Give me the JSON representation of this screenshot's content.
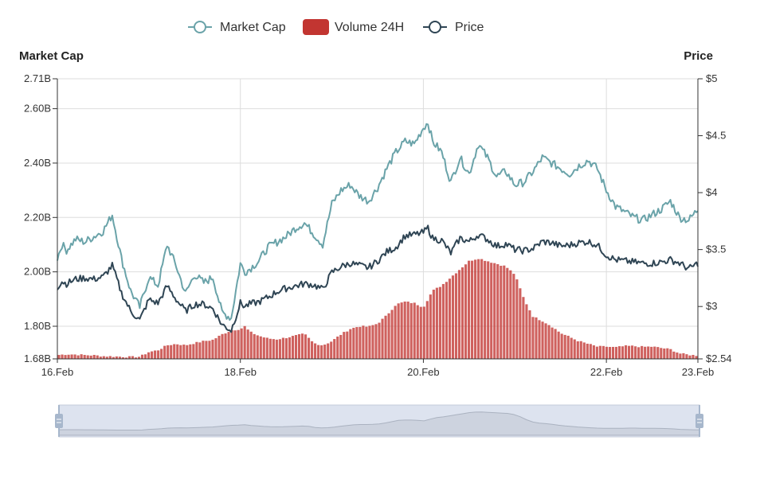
{
  "legend": {
    "market_cap": "Market Cap",
    "volume": "Volume 24H",
    "price": "Price"
  },
  "colors": {
    "market_cap": "#6aa3a9",
    "volume": "#c23531",
    "price": "#2f4554",
    "grid": "#dddddd",
    "axis": "#333333",
    "zoom_fill": "#dde3ef",
    "zoom_border": "#c4cbd8",
    "zoom_handle": "#a7b7cc"
  },
  "chart_data": {
    "type": "line",
    "x_axis": {
      "type": "time",
      "range": [
        "2024-02-16",
        "2024-02-23"
      ],
      "tick_labels": [
        "16.Feb",
        "18.Feb",
        "20.Feb",
        "22.Feb",
        "23.Feb"
      ],
      "tick_days": [
        0,
        2,
        4,
        6,
        7
      ]
    },
    "y_left": {
      "name": "Market Cap",
      "range": [
        1.68,
        2.71
      ],
      "tick_values": [
        1.68,
        1.8,
        2.0,
        2.2,
        2.4,
        2.6,
        2.71
      ],
      "tick_labels": [
        "1.68B",
        "1.80B",
        "2.00B",
        "2.20B",
        "2.40B",
        "2.60B",
        "2.71B"
      ]
    },
    "y_right": {
      "name": "Price",
      "range": [
        2.54,
        5
      ],
      "tick_values": [
        2.54,
        3,
        3.5,
        4,
        4.5,
        5
      ],
      "tick_labels": [
        "$2.54",
        "$3",
        "$3.5",
        "$4",
        "$4.5",
        "$5"
      ]
    },
    "grid": true,
    "legend_position": "top-center",
    "data_zoom": {
      "start": 0,
      "end": 100
    },
    "series": [
      {
        "name": "Market Cap",
        "type": "line",
        "axis": "left",
        "unit": "B",
        "x_days": [
          0,
          0.05,
          0.1,
          0.2,
          0.3,
          0.4,
          0.5,
          0.6,
          0.7,
          0.8,
          0.9,
          1.0,
          1.1,
          1.2,
          1.3,
          1.4,
          1.5,
          1.6,
          1.7,
          1.8,
          1.9,
          2.0,
          2.05,
          2.1,
          2.2,
          2.3,
          2.4,
          2.5,
          2.6,
          2.7,
          2.8,
          2.9,
          3.0,
          3.1,
          3.2,
          3.3,
          3.4,
          3.5,
          3.6,
          3.7,
          3.8,
          3.9,
          4.0,
          4.05,
          4.1,
          4.2,
          4.3,
          4.4,
          4.5,
          4.6,
          4.7,
          4.8,
          4.9,
          5.0,
          5.1,
          5.2,
          5.3,
          5.4,
          5.5,
          5.6,
          5.7,
          5.8,
          5.9,
          6.0,
          6.1,
          6.2,
          6.3,
          6.4,
          6.5,
          6.6,
          6.7,
          6.8,
          6.9,
          7.0
        ],
        "values": [
          2.05,
          2.1,
          2.08,
          2.12,
          2.11,
          2.13,
          2.15,
          2.21,
          2.05,
          1.93,
          1.87,
          1.98,
          1.95,
          2.1,
          2.02,
          1.92,
          1.99,
          1.96,
          1.98,
          1.85,
          1.83,
          2.03,
          2.0,
          2.01,
          2.04,
          2.09,
          2.11,
          2.13,
          2.16,
          2.18,
          2.14,
          2.1,
          2.25,
          2.3,
          2.32,
          2.28,
          2.26,
          2.31,
          2.38,
          2.44,
          2.48,
          2.47,
          2.53,
          2.55,
          2.48,
          2.44,
          2.33,
          2.42,
          2.36,
          2.47,
          2.42,
          2.35,
          2.37,
          2.32,
          2.33,
          2.37,
          2.42,
          2.4,
          2.38,
          2.36,
          2.39,
          2.41,
          2.38,
          2.3,
          2.24,
          2.22,
          2.2,
          2.19,
          2.21,
          2.23,
          2.26,
          2.2,
          2.19,
          2.23
        ]
      },
      {
        "name": "Price",
        "type": "line",
        "axis": "right",
        "unit": "$",
        "x_days": [
          0,
          0.05,
          0.1,
          0.2,
          0.3,
          0.4,
          0.5,
          0.6,
          0.7,
          0.8,
          0.9,
          1.0,
          1.1,
          1.2,
          1.3,
          1.4,
          1.5,
          1.6,
          1.7,
          1.8,
          1.9,
          2.0,
          2.05,
          2.1,
          2.2,
          2.3,
          2.4,
          2.5,
          2.6,
          2.7,
          2.8,
          2.9,
          3.0,
          3.1,
          3.2,
          3.3,
          3.4,
          3.5,
          3.6,
          3.7,
          3.8,
          3.9,
          4.0,
          4.05,
          4.1,
          4.2,
          4.3,
          4.4,
          4.5,
          4.6,
          4.7,
          4.8,
          4.9,
          5.0,
          5.1,
          5.2,
          5.3,
          5.4,
          5.5,
          5.6,
          5.7,
          5.8,
          5.9,
          6.0,
          6.1,
          6.2,
          6.3,
          6.4,
          6.5,
          6.6,
          6.7,
          6.8,
          6.9,
          7.0
        ],
        "values": [
          3.17,
          3.22,
          3.2,
          3.24,
          3.25,
          3.24,
          3.26,
          3.36,
          3.12,
          2.96,
          2.88,
          3.06,
          3.03,
          3.18,
          3.06,
          2.96,
          3.02,
          3.02,
          2.98,
          2.84,
          2.79,
          3.03,
          3.0,
          3.02,
          3.04,
          3.08,
          3.13,
          3.16,
          3.18,
          3.2,
          3.19,
          3.15,
          3.3,
          3.35,
          3.38,
          3.36,
          3.34,
          3.4,
          3.48,
          3.52,
          3.62,
          3.63,
          3.65,
          3.69,
          3.6,
          3.58,
          3.47,
          3.6,
          3.57,
          3.63,
          3.59,
          3.53,
          3.55,
          3.5,
          3.49,
          3.51,
          3.57,
          3.56,
          3.53,
          3.54,
          3.56,
          3.57,
          3.54,
          3.45,
          3.41,
          3.4,
          3.39,
          3.38,
          3.38,
          3.39,
          3.41,
          3.38,
          3.33,
          3.38
        ]
      },
      {
        "name": "Volume 24H",
        "type": "bar",
        "axis": "left",
        "unit": "B",
        "x_days": [
          0,
          0.1,
          0.2,
          0.3,
          0.4,
          0.5,
          0.6,
          0.7,
          0.8,
          0.9,
          1.0,
          1.1,
          1.2,
          1.3,
          1.4,
          1.5,
          1.6,
          1.7,
          1.8,
          1.9,
          2.0,
          2.05,
          2.1,
          2.2,
          2.3,
          2.4,
          2.5,
          2.6,
          2.7,
          2.8,
          2.9,
          3.0,
          3.1,
          3.2,
          3.3,
          3.4,
          3.5,
          3.6,
          3.7,
          3.8,
          3.9,
          4.0,
          4.1,
          4.2,
          4.3,
          4.4,
          4.5,
          4.6,
          4.7,
          4.8,
          4.9,
          5.0,
          5.1,
          5.2,
          5.3,
          5.4,
          5.5,
          5.6,
          5.7,
          5.8,
          5.9,
          6.0,
          6.1,
          6.2,
          6.3,
          6.4,
          6.5,
          6.6,
          6.7,
          6.8,
          6.9,
          7.0
        ],
        "values": [
          1.694,
          1.697,
          1.696,
          1.694,
          1.693,
          1.69,
          1.689,
          1.688,
          1.687,
          1.688,
          1.705,
          1.712,
          1.73,
          1.735,
          1.73,
          1.738,
          1.745,
          1.75,
          1.77,
          1.785,
          1.79,
          1.8,
          1.78,
          1.765,
          1.755,
          1.752,
          1.758,
          1.765,
          1.772,
          1.738,
          1.73,
          1.745,
          1.77,
          1.79,
          1.8,
          1.798,
          1.81,
          1.84,
          1.88,
          1.89,
          1.885,
          1.87,
          1.93,
          1.95,
          1.98,
          2.01,
          2.04,
          2.05,
          2.04,
          2.03,
          2.02,
          1.99,
          1.9,
          1.835,
          1.82,
          1.8,
          1.775,
          1.76,
          1.745,
          1.735,
          1.725,
          1.725,
          1.722,
          1.727,
          1.727,
          1.724,
          1.725,
          1.72,
          1.715,
          1.7,
          1.695,
          1.692
        ]
      }
    ]
  }
}
